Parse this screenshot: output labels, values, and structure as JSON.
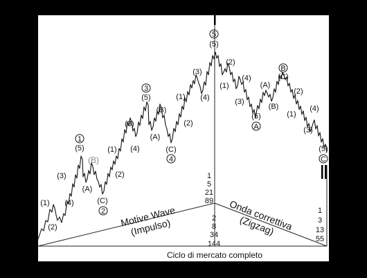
{
  "wave_labels": {
    "m1": "(1)",
    "m2": "(2)",
    "m3": "(3)",
    "m4": "(4)",
    "m5": "(5)",
    "mA": "(A)",
    "mC": "(C)",
    "mB_gray": "(B)",
    "c1": "1",
    "c2": "2",
    "c3": "3",
    "c4": "4",
    "c5": "5",
    "cA": "A",
    "cB": "B",
    "cC": "C"
  },
  "texts": {
    "motive_line1": "Motive Wave",
    "motive_line2": "(Impulso)",
    "corrective_line1": "Onda correttiva",
    "corrective_line2": "(Zigzag)",
    "caption": "Ciclo di mercato completo"
  },
  "fib_counts": {
    "motive_upper": [
      "1",
      "5",
      "21",
      "89"
    ],
    "motive_lower": [
      "2",
      "8",
      "34",
      "144"
    ],
    "corrective": [
      "1",
      "3",
      "13",
      "55"
    ]
  }
}
